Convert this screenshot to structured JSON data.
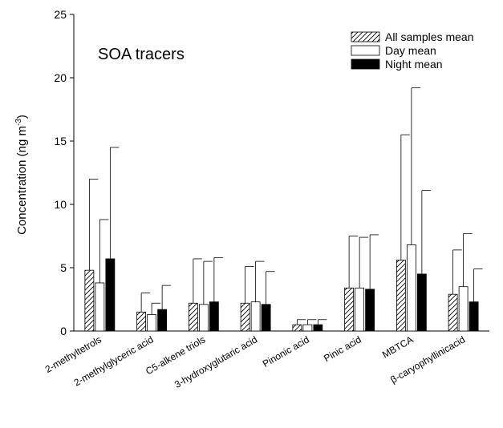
{
  "chart_data": {
    "type": "bar",
    "annotation": "SOA tracers",
    "ylabel": "Concentration (ng m",
    "ylabel_sup": "-3",
    "ylabel_close": ")",
    "ylim": [
      0,
      25
    ],
    "yticks": [
      0,
      5,
      10,
      15,
      20,
      25
    ],
    "legend_position": "top-right",
    "categories": [
      "2-methyltetrols",
      "2-methylglyceric acid",
      "C5-alkene triols",
      "3-hydroxyglutaric acid",
      "Pinonic acid",
      "Pinic acid",
      "MBTCA",
      "β-caryophyllinicacid"
    ],
    "series": [
      {
        "name": "All samples mean",
        "pattern": "hatched",
        "values": [
          4.8,
          1.5,
          2.2,
          2.2,
          0.5,
          3.4,
          5.6,
          2.9
        ],
        "errors": [
          7.2,
          1.5,
          3.5,
          2.9,
          0.4,
          4.1,
          9.9,
          3.5
        ]
      },
      {
        "name": "Day mean",
        "pattern": "white",
        "values": [
          3.8,
          1.3,
          2.1,
          2.3,
          0.5,
          3.4,
          6.8,
          3.5
        ],
        "errors": [
          5.0,
          0.9,
          3.4,
          3.2,
          0.4,
          4.0,
          12.4,
          4.2
        ]
      },
      {
        "name": "Night mean",
        "pattern": "black",
        "values": [
          5.7,
          1.7,
          2.3,
          2.1,
          0.5,
          3.3,
          4.5,
          2.3
        ],
        "errors": [
          8.8,
          1.9,
          3.5,
          2.6,
          0.4,
          4.3,
          6.6,
          2.6
        ]
      }
    ]
  }
}
